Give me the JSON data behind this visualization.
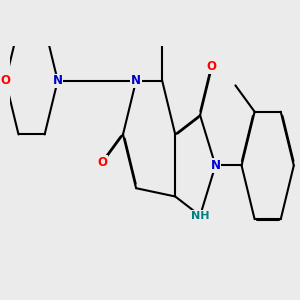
{
  "background_color": "#ebebeb",
  "bond_color": "#000000",
  "atom_colors": {
    "N": "#0000cc",
    "O": "#ff0000",
    "H": "#008080",
    "C": "#000000"
  },
  "bond_width": 1.5,
  "figsize": [
    3.0,
    3.0
  ],
  "dpi": 100
}
